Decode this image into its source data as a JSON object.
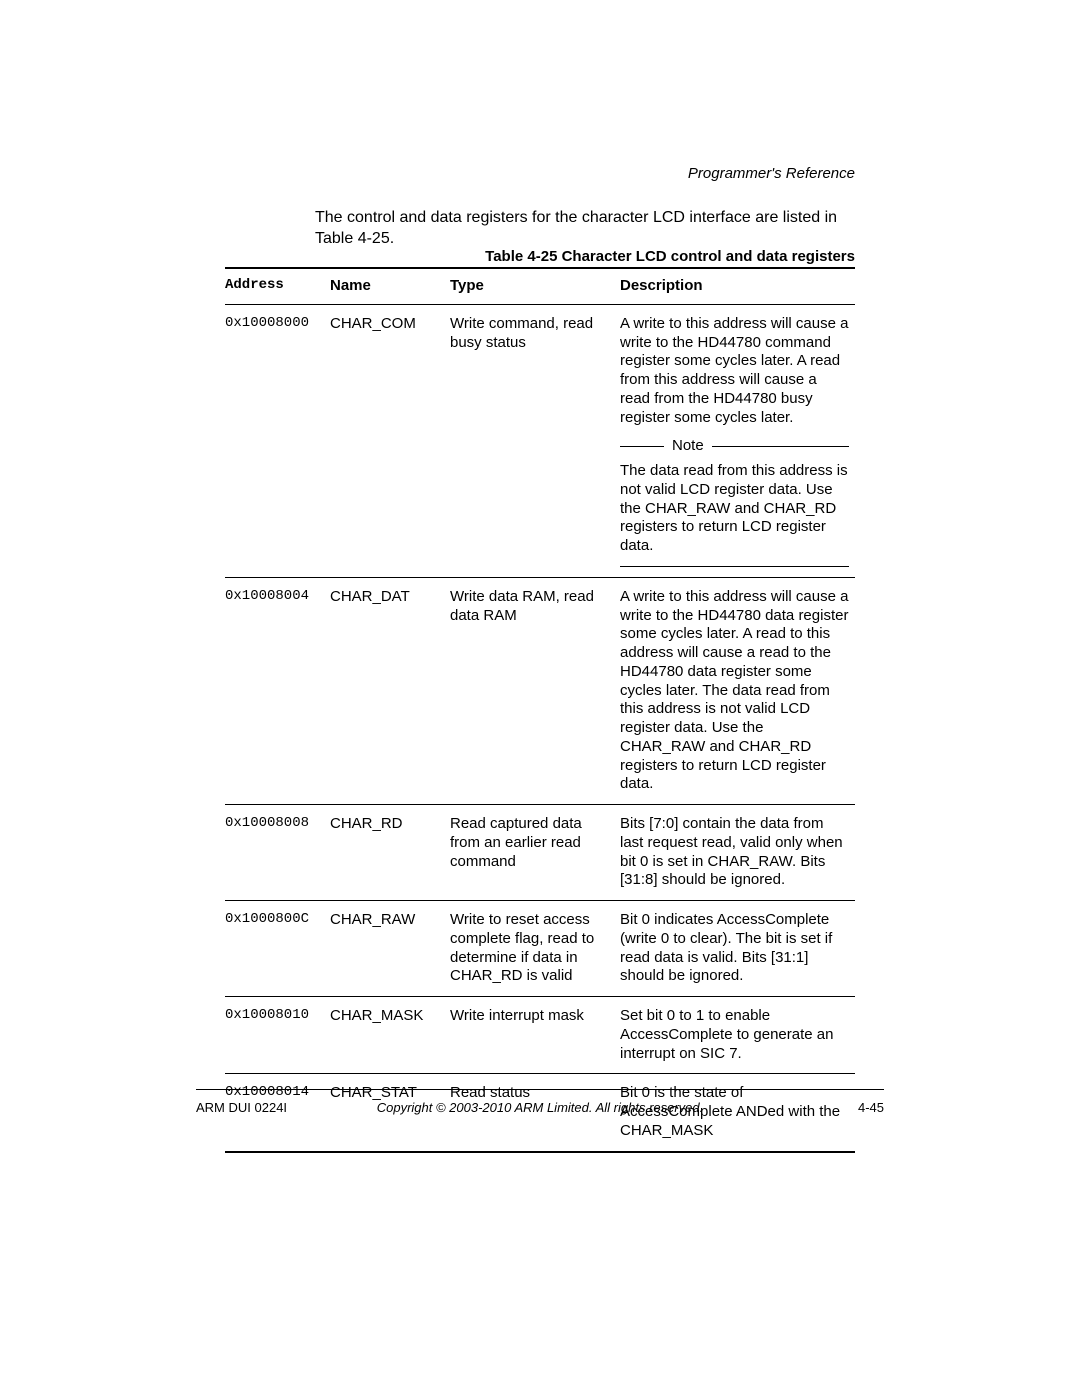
{
  "running_head": "Programmer's Reference",
  "intro_text": "The control and data registers for the character LCD interface are listed in Table 4-25.",
  "table_caption": "Table 4-25 Character LCD control and data registers",
  "columns": {
    "address": "Address",
    "name": "Name",
    "type": "Type",
    "description": "Description"
  },
  "note_label": "Note",
  "rows": [
    {
      "address": "0x10008000",
      "name": "CHAR_COM",
      "type": "Write command, read busy status",
      "description": "A write to this address will cause a write to the HD44780 command register some cycles later. A read from this address will cause a read from the HD44780 busy register some cycles later.",
      "note": "The data read from this address is not valid LCD register data. Use the CHAR_RAW and CHAR_RD registers to return LCD register data."
    },
    {
      "address": "0x10008004",
      "name": "CHAR_DAT",
      "type": "Write data RAM, read data RAM",
      "description": "A write to this address will cause a write to the HD44780 data register some cycles later. A read to this address will cause a read to the HD44780 data register some cycles later. The data read from this address is not valid LCD register data. Use the CHAR_RAW and CHAR_RD registers to return LCD register data."
    },
    {
      "address": "0x10008008",
      "name": "CHAR_RD",
      "type": "Read captured data from an earlier read command",
      "description": "Bits [7:0] contain the data from last request read, valid only when bit 0 is set in CHAR_RAW. Bits [31:8] should be ignored."
    },
    {
      "address": "0x1000800C",
      "name": "CHAR_RAW",
      "type": "Write to reset access complete flag, read to determine if data in CHAR_RD is valid",
      "description": "Bit 0 indicates AccessComplete (write 0 to clear). The bit is set if read data is valid. Bits [31:1] should be ignored."
    },
    {
      "address": "0x10008010",
      "name": "CHAR_MASK",
      "type": "Write interrupt mask",
      "description": "Set bit 0 to 1 to enable AccessComplete to generate an interrupt on SIC 7."
    },
    {
      "address": "0x10008014",
      "name": "CHAR_STAT",
      "type": "Read status",
      "description": "Bit 0 is the state of AccessComplete ANDed with the CHAR_MASK"
    }
  ],
  "footer": {
    "left": "ARM DUI 0224I",
    "center": "Copyright © 2003-2010 ARM Limited. All rights reserved.",
    "right": "4-45"
  }
}
